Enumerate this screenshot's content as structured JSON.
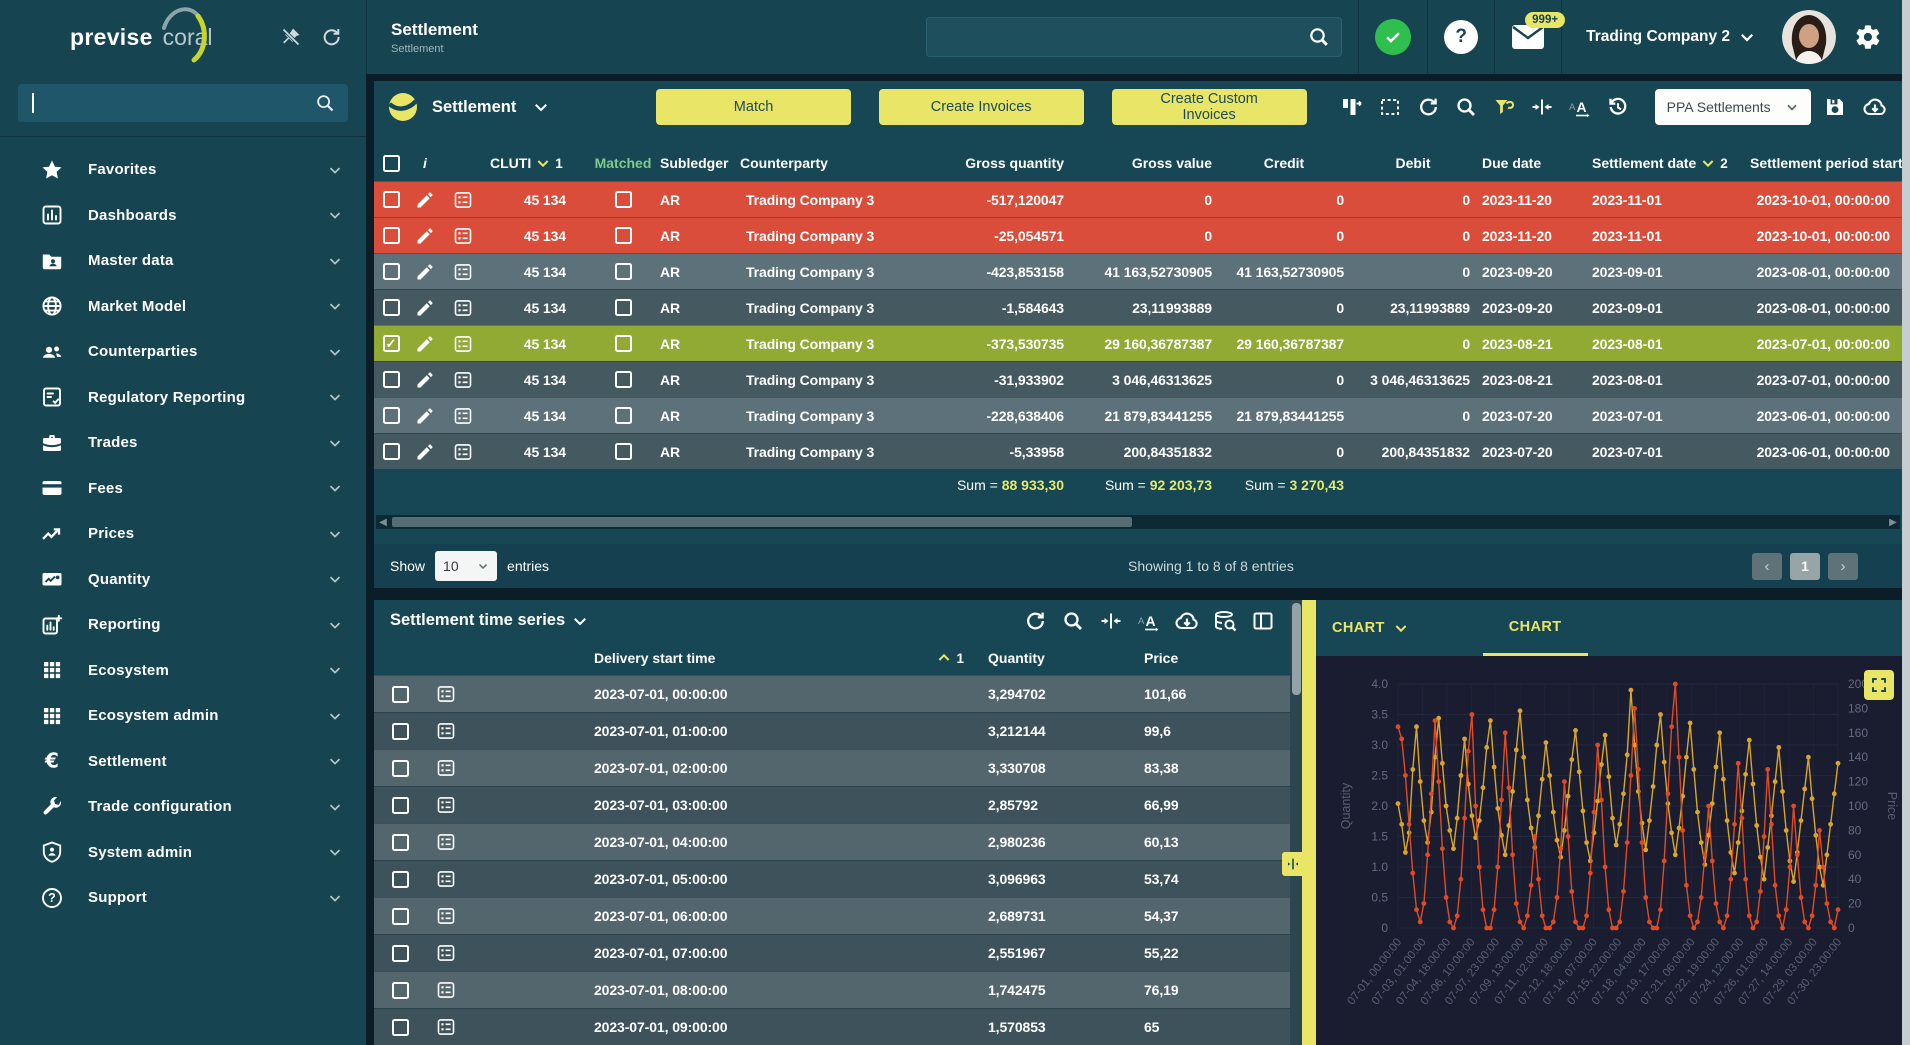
{
  "brand": {
    "logo_left": "previse",
    "logo_right": "coral"
  },
  "topbar": {
    "title": "Settlement",
    "subtitle": "Settlement",
    "search_value": "",
    "company": "Trading Company 2",
    "mail_badge": "999+"
  },
  "sidebar": {
    "search_value": "",
    "items": [
      {
        "label": "Favorites",
        "icon": "star"
      },
      {
        "label": "Dashboards",
        "icon": "dashboard"
      },
      {
        "label": "Master data",
        "icon": "folder-user"
      },
      {
        "label": "Market Model",
        "icon": "globe"
      },
      {
        "label": "Counterparties",
        "icon": "people"
      },
      {
        "label": "Regulatory Reporting",
        "icon": "clipboard-check"
      },
      {
        "label": "Trades",
        "icon": "briefcase"
      },
      {
        "label": "Fees",
        "icon": "card"
      },
      {
        "label": "Prices",
        "icon": "trend"
      },
      {
        "label": "Quantity",
        "icon": "chart-image"
      },
      {
        "label": "Reporting",
        "icon": "chart-plus"
      },
      {
        "label": "Ecosystem",
        "icon": "grid"
      },
      {
        "label": "Ecosystem admin",
        "icon": "grid"
      },
      {
        "label": "Settlement",
        "icon": "euro"
      },
      {
        "label": "Trade configuration",
        "icon": "wrench"
      },
      {
        "label": "System admin",
        "icon": "shield"
      },
      {
        "label": "Support",
        "icon": "help"
      }
    ]
  },
  "panel1": {
    "title": "Settlement",
    "buttons": {
      "match": "Match",
      "create_invoices": "Create Invoices",
      "create_custom_invoices": "Create Custom Invoices"
    },
    "view_select": "PPA Settlements",
    "columns": {
      "info": "i",
      "cluti": "CLUTI",
      "matched": "Matched",
      "subledger": "Subledger",
      "counterparty": "Counterparty",
      "gross_quantity": "Gross quantity",
      "gross_value": "Gross value",
      "credit": "Credit",
      "debit": "Debit",
      "due_date": "Due date",
      "settlement_date": "Settlement date",
      "period_start": "Settlement period start"
    },
    "sort": {
      "cluti_order": "1",
      "settlement_date_order": "2"
    },
    "rows": [
      {
        "cluti": "45 134",
        "checked": false,
        "matched": false,
        "subledger": "AR",
        "counterparty": "Trading Company 3",
        "gross_quantity": "-517,120047",
        "gross_value": "0",
        "credit": "0",
        "debit": "0",
        "due_date": "2023-11-20",
        "settlement_date": "2023-11-01",
        "period_start": "2023-10-01, 00:00:00",
        "state": "red"
      },
      {
        "cluti": "45 134",
        "checked": false,
        "matched": false,
        "subledger": "AR",
        "counterparty": "Trading Company 3",
        "gross_quantity": "-25,054571",
        "gross_value": "0",
        "credit": "0",
        "debit": "0",
        "due_date": "2023-11-20",
        "settlement_date": "2023-11-01",
        "period_start": "2023-10-01, 00:00:00",
        "state": "red"
      },
      {
        "cluti": "45 134",
        "checked": false,
        "matched": false,
        "subledger": "AR",
        "counterparty": "Trading Company 3",
        "gross_quantity": "-423,853158",
        "gross_value": "41 163,52730905",
        "credit": "41 163,52730905",
        "debit": "0",
        "due_date": "2023-09-20",
        "settlement_date": "2023-09-01",
        "period_start": "2023-08-01, 00:00:00",
        "state": "light"
      },
      {
        "cluti": "45 134",
        "checked": false,
        "matched": false,
        "subledger": "AR",
        "counterparty": "Trading Company 3",
        "gross_quantity": "-1,584643",
        "gross_value": "23,11993889",
        "credit": "0",
        "debit": "23,11993889",
        "due_date": "2023-09-20",
        "settlement_date": "2023-09-01",
        "period_start": "2023-08-01, 00:00:00",
        "state": "dark"
      },
      {
        "cluti": "45 134",
        "checked": true,
        "matched": false,
        "subledger": "AR",
        "counterparty": "Trading Company 3",
        "gross_quantity": "-373,530735",
        "gross_value": "29 160,36787387",
        "credit": "29 160,36787387",
        "debit": "0",
        "due_date": "2023-08-21",
        "settlement_date": "2023-08-01",
        "period_start": "2023-07-01, 00:00:00",
        "state": "green"
      },
      {
        "cluti": "45 134",
        "checked": false,
        "matched": false,
        "subledger": "AR",
        "counterparty": "Trading Company 3",
        "gross_quantity": "-31,933902",
        "gross_value": "3 046,46313625",
        "credit": "0",
        "debit": "3 046,46313625",
        "due_date": "2023-08-21",
        "settlement_date": "2023-08-01",
        "period_start": "2023-07-01, 00:00:00",
        "state": "dark"
      },
      {
        "cluti": "45 134",
        "checked": false,
        "matched": false,
        "subledger": "AR",
        "counterparty": "Trading Company 3",
        "gross_quantity": "-228,638406",
        "gross_value": "21 879,83441255",
        "credit": "21 879,83441255",
        "debit": "0",
        "due_date": "2023-07-20",
        "settlement_date": "2023-07-01",
        "period_start": "2023-06-01, 00:00:00",
        "state": "light"
      },
      {
        "cluti": "45 134",
        "checked": false,
        "matched": false,
        "subledger": "AR",
        "counterparty": "Trading Company 3",
        "gross_quantity": "-5,33958",
        "gross_value": "200,84351832",
        "credit": "0",
        "debit": "200,84351832",
        "due_date": "2023-07-20",
        "settlement_date": "2023-07-01",
        "period_start": "2023-06-01, 00:00:00",
        "state": "dark"
      }
    ],
    "sums": {
      "label": "Sum = ",
      "gross_quantity": "88 933,30",
      "gross_value": "92 203,73",
      "credit": "3 270,43"
    },
    "pagination": {
      "show_label": "Show",
      "page_size": "10",
      "entries_label": "entries",
      "status": "Showing 1 to 8 of 8 entries",
      "page": "1"
    }
  },
  "panel2": {
    "title": "Settlement time series",
    "columns": {
      "delivery": "Delivery start time",
      "quantity": "Quantity",
      "price": "Price"
    },
    "sort_order": "1",
    "rows": [
      {
        "delivery": "2023-07-01, 00:00:00",
        "quantity": "3,294702",
        "price": "101,66"
      },
      {
        "delivery": "2023-07-01, 01:00:00",
        "quantity": "3,212144",
        "price": "99,6"
      },
      {
        "delivery": "2023-07-01, 02:00:00",
        "quantity": "3,330708",
        "price": "83,38"
      },
      {
        "delivery": "2023-07-01, 03:00:00",
        "quantity": "2,85792",
        "price": "66,99"
      },
      {
        "delivery": "2023-07-01, 04:00:00",
        "quantity": "2,980236",
        "price": "60,13"
      },
      {
        "delivery": "2023-07-01, 05:00:00",
        "quantity": "3,096963",
        "price": "53,74"
      },
      {
        "delivery": "2023-07-01, 06:00:00",
        "quantity": "2,689731",
        "price": "54,37"
      },
      {
        "delivery": "2023-07-01, 07:00:00",
        "quantity": "2,551967",
        "price": "55,22"
      },
      {
        "delivery": "2023-07-01, 08:00:00",
        "quantity": "1,742475",
        "price": "76,19"
      },
      {
        "delivery": "2023-07-01, 09:00:00",
        "quantity": "1,570853",
        "price": "65"
      }
    ]
  },
  "chart": {
    "dropdown_label": "CHART",
    "tab_label": "CHART"
  },
  "chart_data": {
    "type": "line",
    "title": "",
    "legend": false,
    "grid": true,
    "background": "#1a1c30",
    "left_axis": {
      "label": "Quantity",
      "min": 0,
      "max": 4,
      "step": 0.5
    },
    "right_axis": {
      "label": "Price",
      "min": 0,
      "max": 200,
      "step": 20
    },
    "x_labels": [
      "07-01, 00:00:00",
      "07-03, 01:00:00",
      "07-04, 18:00:00",
      "07-06, 10:00:00",
      "07-07, 23:00:00",
      "07-09, 13:00:00",
      "07-11, 02:00:00",
      "07-12, 18:00:00",
      "07-14, 07:00:00",
      "07-15, 22:00:00",
      "07-18, 04:00:00",
      "07-19, 17:00:00",
      "07-21, 06:00:00",
      "07-22, 19:00:00",
      "07-24, 12:00:00",
      "07-26, 01:00:00",
      "07-27, 14:00:00",
      "07-29, 03:00:00",
      "07-30, 23:00:00"
    ],
    "series": [
      {
        "name": "Price",
        "axis": "right",
        "color": "#d9a62c",
        "values": [
          102,
          85,
          62,
          78,
          130,
          165,
          120,
          88,
          70,
          95,
          140,
          172,
          135,
          100,
          80,
          65,
          90,
          125,
          155,
          118,
          92,
          74,
          88,
          115,
          148,
          170,
          132,
          98,
          76,
          60,
          84,
          112,
          146,
          178,
          140,
          105,
          82,
          66,
          92,
          122,
          152,
          125,
          95,
          72,
          58,
          80,
          108,
          138,
          162,
          128,
          96,
          70,
          55,
          78,
          104,
          134,
          158,
          124,
          90,
          68,
          85,
          110,
          142,
          195,
          150,
          112,
          86,
          64,
          88,
          116,
          150,
          175,
          136,
          102,
          78,
          60,
          82,
          108,
          140,
          168,
          130,
          95,
          70,
          52,
          76,
          102,
          132,
          160,
          122,
          88,
          62,
          45,
          70,
          96,
          126,
          154,
          118,
          84,
          58,
          40,
          66,
          92,
          120,
          148,
          112,
          80,
          55,
          38,
          62,
          88,
          114,
          140,
          106,
          76,
          50,
          35,
          60,
          85,
          110,
          135
        ]
      },
      {
        "name": "Quantity",
        "axis": "left",
        "color": "#e04b26",
        "values": [
          3.3,
          3.1,
          2.5,
          1.7,
          0.9,
          0.3,
          0.1,
          0.4,
          1.2,
          2.2,
          3.4,
          2.4,
          1.3,
          0.5,
          0.1,
          0,
          0.2,
          0.8,
          1.8,
          2.9,
          3.5,
          2.0,
          1.0,
          0.3,
          0,
          0,
          0.3,
          1.0,
          2.1,
          3.2,
          2.3,
          1.2,
          0.4,
          0.1,
          0,
          0.2,
          0.7,
          1.5,
          0.8,
          0.2,
          0,
          0,
          0.1,
          0.5,
          1.3,
          2.4,
          1.5,
          0.6,
          0.1,
          0,
          0,
          0.2,
          0.9,
          1.9,
          3.0,
          2.1,
          1.0,
          0.3,
          0,
          0,
          0.1,
          0.6,
          1.4,
          2.5,
          3.6,
          2.6,
          1.4,
          0.5,
          0.1,
          0,
          0,
          0.3,
          1.1,
          2.2,
          3.3,
          4.0,
          2.8,
          1.6,
          0.7,
          0.2,
          0,
          0.1,
          0.5,
          1.2,
          2.0,
          1.1,
          0.4,
          0.1,
          0,
          0.2,
          0.8,
          1.7,
          2.7,
          1.8,
          0.8,
          0.2,
          0,
          0.1,
          0.6,
          1.5,
          2.6,
          1.7,
          0.7,
          0.2,
          0,
          0.3,
          1.0,
          2.0,
          1.2,
          0.5,
          0.1,
          0,
          0.2,
          0.7,
          1.6,
          1.0,
          0.4,
          0.1,
          0,
          0.3
        ]
      }
    ]
  },
  "colors": {
    "accent_yellow": "#e9e566",
    "row_red": "#d94d3a",
    "row_green": "#90aa33",
    "sum_value": "#e4e96b",
    "matched_header": "#7fca8e",
    "series_price": "#d9a62c",
    "series_quantity": "#e04b26"
  }
}
